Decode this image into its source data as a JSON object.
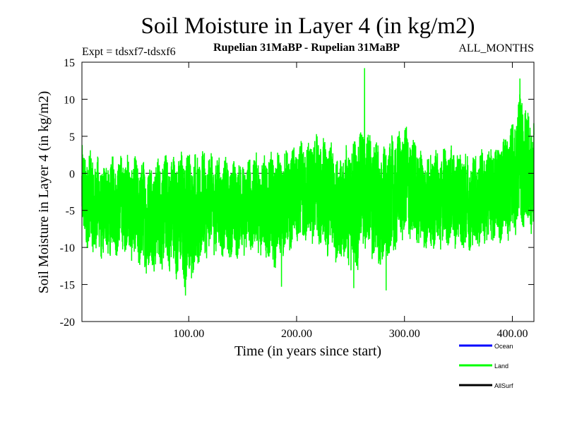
{
  "chart_data": {
    "type": "line",
    "title": "Soil Moisture in Layer 4 (in kg/m2)",
    "subtitle_left": "Expt = tdsxf7-tdsxf6",
    "subtitle_center": "Rupelian  31MaBP - Rupelian  31MaBP",
    "subtitle_right": "ALL_MONTHS",
    "xlabel": "Time (in years since start)",
    "ylabel": "Soil Moisture in Layer 4 (in kg/m2)",
    "xlim": [
      1,
      420
    ],
    "ylim": [
      -20,
      15
    ],
    "x_ticks": [
      100,
      200,
      300,
      400
    ],
    "x_tick_labels": [
      "100.00",
      "200.00",
      "300.00",
      "400.00"
    ],
    "y_ticks": [
      -20,
      -15,
      -10,
      -5,
      0,
      5,
      10,
      15
    ],
    "y_tick_labels": [
      "-20",
      "-15",
      "-10",
      "-5",
      "0",
      "5",
      "10",
      "15"
    ],
    "zero_line": 0,
    "series": [
      {
        "name": "Land",
        "color": "#00ff00",
        "envelope": {
          "x": [
            1,
            20,
            40,
            60,
            80,
            97,
            120,
            140,
            160,
            180,
            200,
            220,
            240,
            255,
            263,
            280,
            300,
            320,
            340,
            360,
            380,
            400,
            408,
            420
          ],
          "center": [
            -3,
            -5,
            -4,
            -6,
            -5,
            -6,
            -4,
            -5,
            -4,
            -5,
            -3,
            -2,
            -5,
            -4,
            -2,
            -5,
            -1,
            -4,
            -3,
            -4,
            -3,
            -1,
            2,
            -1
          ],
          "amplitude": [
            7,
            7,
            7,
            8,
            8,
            10,
            7,
            7,
            7,
            8,
            7,
            8,
            8,
            10,
            9,
            9,
            8,
            7,
            7,
            7,
            7,
            8,
            10,
            8
          ]
        },
        "extremes": [
          {
            "x": 263,
            "y": 14.2
          },
          {
            "x": 407,
            "y": 12.8
          },
          {
            "x": 97,
            "y": -16.5
          },
          {
            "x": 283,
            "y": -15.8
          },
          {
            "x": 253,
            "y": -15.5
          },
          {
            "x": 186,
            "y": -15.3
          }
        ]
      }
    ],
    "legend": [
      {
        "label": "Ocean",
        "color": "#0000ff"
      },
      {
        "label": "Land",
        "color": "#00ff00"
      },
      {
        "label": "AllSurf",
        "color": "#000000"
      }
    ]
  }
}
